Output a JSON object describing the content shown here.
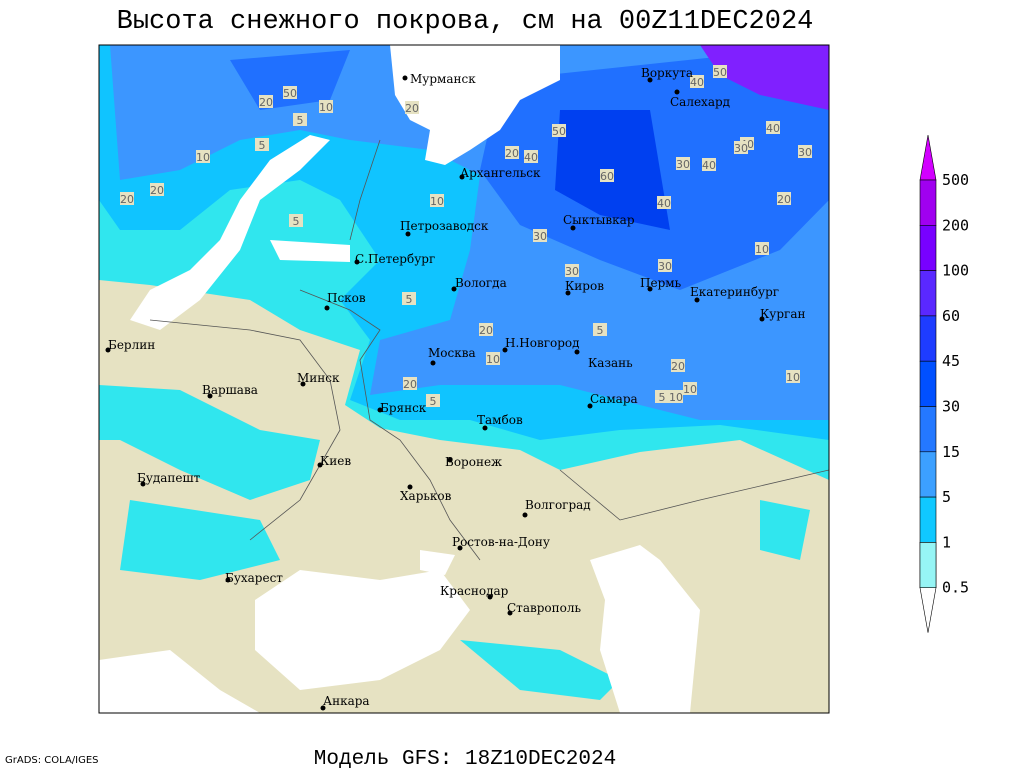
{
  "header": {
    "title": "Высота снежного покрова, см на 00Z11DEC2024"
  },
  "map": {
    "cities": [
      "Мурманск",
      "Воркута",
      "Салехард",
      "Архангельск",
      "Сыктывкар",
      "Петрозаводск",
      "С.Петербург",
      "Вологда",
      "Киров",
      "Пермь",
      "Екатеринбург",
      "Курган",
      "Псков",
      "Н.Новгород",
      "Москва",
      "Казань",
      "Берлин",
      "Минск",
      "Варшава",
      "Брянск",
      "Самара",
      "Тамбов",
      "Воронеж",
      "Киев",
      "Будапешт",
      "Харьков",
      "Волгоград",
      "Ростов-на-Дону",
      "Бухарест",
      "Краснодар",
      "Ставрополь",
      "Анкара"
    ],
    "contour_labels": [
      50,
      20,
      10,
      5,
      20,
      5,
      10,
      20,
      20,
      5,
      10,
      20,
      40,
      50,
      60,
      40,
      30,
      30,
      30,
      40,
      50,
      40,
      40,
      30,
      30,
      30,
      40,
      20,
      10,
      5,
      20,
      10,
      20,
      5,
      5,
      20,
      10,
      10,
      5,
      10
    ]
  },
  "legend": {
    "levels": [
      500,
      200,
      100,
      60,
      45,
      30,
      15,
      5,
      1,
      0.5
    ]
  },
  "footer": {
    "credit": "GrADS: COLA/IGES",
    "model": "Модель GFS: 18Z10DEC2024"
  }
}
